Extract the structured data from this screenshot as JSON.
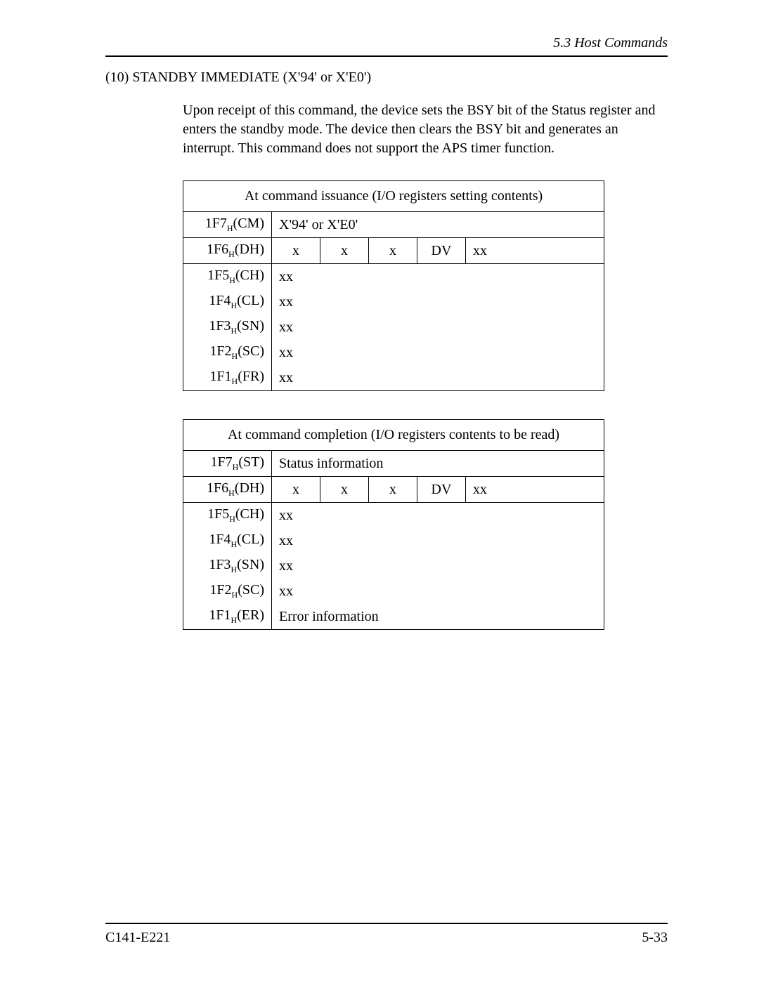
{
  "header": {
    "section": "5.3  Host Commands"
  },
  "title": "(10)  STANDBY IMMEDIATE (X'94' or X'E0')",
  "paragraph": "Upon receipt of this command, the device sets the BSY bit of the Status register and enters the standby mode. The device then clears the BSY bit and generates an interrupt.  This command does not support the APS timer function.",
  "table1": {
    "caption": "At command issuance (I/O registers setting contents)",
    "rows": {
      "r1": {
        "label_pre": "1F7",
        "label_sub": "H",
        "label_post": "(CM)",
        "v": "X'94' or X'E0'"
      },
      "r2": {
        "label_pre": "1F6",
        "label_sub": "H",
        "label_post": "(DH)",
        "c1": "x",
        "c2": "x",
        "c3": "x",
        "c4": "DV",
        "c5": "xx"
      },
      "r3": {
        "label_pre": "1F5",
        "label_sub": "H",
        "label_post": "(CH)",
        "v": "xx"
      },
      "r4": {
        "label_pre": "1F4",
        "label_sub": "H",
        "label_post": "(CL)",
        "v": "xx"
      },
      "r5": {
        "label_pre": "1F3",
        "label_sub": "H",
        "label_post": "(SN)",
        "v": "xx"
      },
      "r6": {
        "label_pre": "1F2",
        "label_sub": "H",
        "label_post": "(SC)",
        "v": "xx"
      },
      "r7": {
        "label_pre": "1F1",
        "label_sub": "H",
        "label_post": "(FR)",
        "v": "xx"
      }
    }
  },
  "table2": {
    "caption": "At command completion (I/O registers contents to be read)",
    "rows": {
      "r1": {
        "label_pre": "1F7",
        "label_sub": "H",
        "label_post": "(ST)",
        "v": "Status information"
      },
      "r2": {
        "label_pre": "1F6",
        "label_sub": "H",
        "label_post": "(DH)",
        "c1": "x",
        "c2": "x",
        "c3": "x",
        "c4": "DV",
        "c5": "xx"
      },
      "r3": {
        "label_pre": "1F5",
        "label_sub": "H",
        "label_post": "(CH)",
        "v": "xx"
      },
      "r4": {
        "label_pre": "1F4",
        "label_sub": "H",
        "label_post": "(CL)",
        "v": "xx"
      },
      "r5": {
        "label_pre": "1F3",
        "label_sub": "H",
        "label_post": "(SN)",
        "v": "xx"
      },
      "r6": {
        "label_pre": "1F2",
        "label_sub": "H",
        "label_post": "(SC)",
        "v": "xx"
      },
      "r7": {
        "label_pre": "1F1",
        "label_sub": "H",
        "label_post": "(ER)",
        "v": "Error information"
      }
    }
  },
  "footer": {
    "left": "C141-E221",
    "right": "5-33"
  }
}
